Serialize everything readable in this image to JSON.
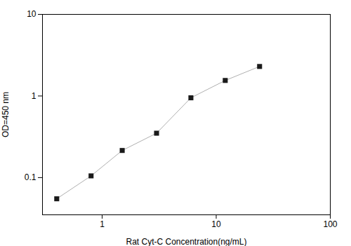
{
  "chart_data": {
    "type": "line",
    "xlabel": "Rat Cyt-C Concentration(ng/mL)",
    "ylabel": "OD=450 nm",
    "x": [
      0.4,
      0.8,
      1.5,
      3.0,
      6.0,
      12.0,
      24.0
    ],
    "series": [
      {
        "type": "line",
        "color": "#b0b0b0",
        "values": [
          0.055,
          0.105,
          0.215,
          0.35,
          0.95,
          1.55,
          2.3
        ]
      },
      {
        "type": "scatter",
        "color": "#1a1a1a",
        "marker": "square",
        "values": [
          0.055,
          0.105,
          0.215,
          0.35,
          0.95,
          1.55,
          2.3
        ]
      }
    ],
    "xlim": [
      0.3,
      100
    ],
    "ylim": [
      0.035,
      10
    ],
    "xticks": [
      1,
      10,
      100
    ],
    "yticks": [
      0.1,
      1,
      10
    ],
    "log": true,
    "grid": false
  }
}
